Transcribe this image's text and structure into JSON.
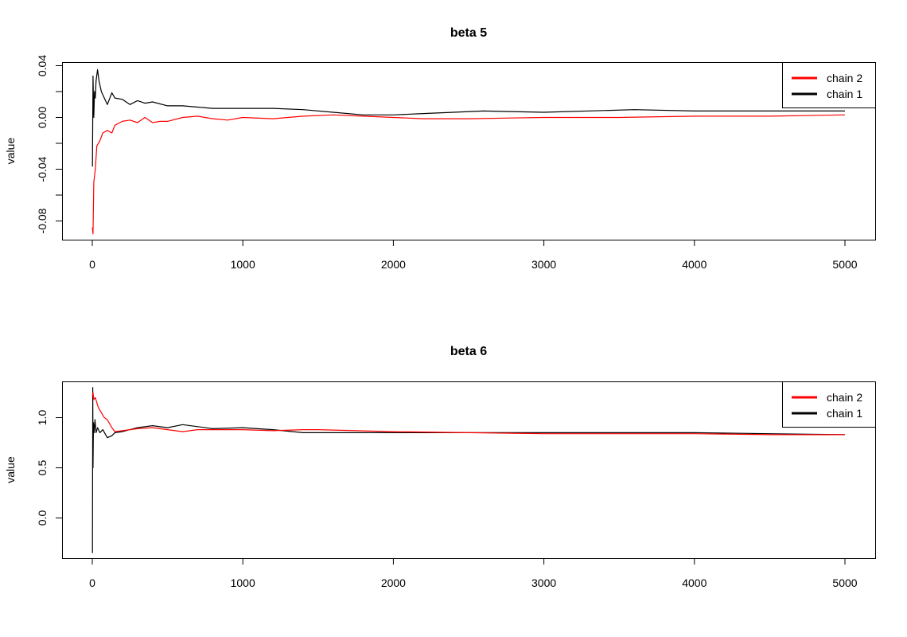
{
  "chart_data": [
    {
      "type": "line",
      "title": "beta 5",
      "xlabel": "",
      "ylabel": "value",
      "xlim": [
        0,
        5000
      ],
      "ylim": [
        -0.095,
        0.041
      ],
      "xticks": [
        0,
        1000,
        2000,
        3000,
        4000,
        5000
      ],
      "xtick_labels": [
        "0",
        "1000",
        "2000",
        "3000",
        "4000",
        "5000"
      ],
      "yticks": [
        -0.08,
        -0.06,
        -0.04,
        -0.02,
        0.0,
        0.02,
        0.04
      ],
      "ytick_labels": [
        "-0.08",
        "",
        "-0.04",
        "",
        "0.00",
        "",
        "0.04"
      ],
      "grid": false,
      "legend_position": "top-right",
      "legend": [
        {
          "label": "chain 2",
          "color": "#ff0000"
        },
        {
          "label": "chain 1",
          "color": "#000000"
        }
      ],
      "series": [
        {
          "name": "chain 2",
          "color": "#ff0000",
          "x": [
            1,
            5,
            10,
            20,
            30,
            50,
            70,
            100,
            130,
            150,
            200,
            250,
            300,
            350,
            400,
            450,
            500,
            600,
            700,
            800,
            900,
            1000,
            1200,
            1400,
            1600,
            1800,
            2000,
            2200,
            2500,
            3000,
            3500,
            4000,
            4500,
            5000
          ],
          "y": [
            -0.085,
            -0.09,
            -0.05,
            -0.04,
            -0.022,
            -0.018,
            -0.012,
            -0.01,
            -0.012,
            -0.006,
            -0.003,
            -0.002,
            -0.004,
            0.0,
            -0.004,
            -0.003,
            -0.003,
            0.0,
            0.001,
            -0.001,
            -0.002,
            0.0,
            -0.001,
            0.001,
            0.002,
            0.001,
            0.0,
            -0.001,
            -0.001,
            0.0,
            0.0,
            0.001,
            0.001,
            0.002
          ]
        },
        {
          "name": "chain 1",
          "color": "#000000",
          "x": [
            1,
            5,
            10,
            15,
            20,
            25,
            35,
            45,
            60,
            80,
            100,
            130,
            150,
            200,
            250,
            300,
            350,
            400,
            500,
            600,
            700,
            800,
            900,
            1000,
            1200,
            1400,
            1600,
            1800,
            2000,
            2200,
            2600,
            3000,
            3600,
            4000,
            4500,
            5000
          ],
          "y": [
            -0.038,
            0.032,
            0.0,
            0.02,
            0.015,
            0.028,
            0.037,
            0.028,
            0.02,
            0.015,
            0.01,
            0.019,
            0.015,
            0.014,
            0.01,
            0.013,
            0.011,
            0.012,
            0.009,
            0.009,
            0.008,
            0.007,
            0.007,
            0.007,
            0.007,
            0.006,
            0.004,
            0.002,
            0.002,
            0.003,
            0.005,
            0.004,
            0.006,
            0.005,
            0.005,
            0.005
          ]
        }
      ]
    },
    {
      "type": "line",
      "title": "beta 6",
      "xlabel": "",
      "ylabel": "value",
      "xlim": [
        0,
        5000
      ],
      "ylim": [
        -0.4,
        1.35
      ],
      "xticks": [
        0,
        1000,
        2000,
        3000,
        4000,
        5000
      ],
      "xtick_labels": [
        "0",
        "1000",
        "2000",
        "3000",
        "4000",
        "5000"
      ],
      "yticks": [
        0.0,
        0.5,
        1.0
      ],
      "ytick_labels": [
        "0.0",
        "0.5",
        "1.0"
      ],
      "grid": false,
      "legend_position": "top-right",
      "legend": [
        {
          "label": "chain 2",
          "color": "#ff0000"
        },
        {
          "label": "chain 1",
          "color": "#000000"
        }
      ],
      "series": [
        {
          "name": "chain 2",
          "color": "#ff0000",
          "x": [
            1,
            5,
            10,
            20,
            40,
            60,
            80,
            100,
            130,
            150,
            200,
            300,
            400,
            500,
            600,
            700,
            800,
            1000,
            1200,
            1400,
            1500,
            2000,
            2500,
            3000,
            3500,
            4000,
            4500,
            5000
          ],
          "y": [
            1.22,
            1.25,
            1.18,
            1.2,
            1.1,
            1.05,
            1.0,
            0.98,
            0.9,
            0.86,
            0.87,
            0.89,
            0.9,
            0.88,
            0.86,
            0.88,
            0.88,
            0.88,
            0.87,
            0.88,
            0.88,
            0.86,
            0.85,
            0.84,
            0.84,
            0.84,
            0.83,
            0.83
          ]
        },
        {
          "name": "chain 1",
          "color": "#000000",
          "x": [
            1,
            3,
            5,
            8,
            12,
            18,
            25,
            35,
            50,
            70,
            100,
            130,
            150,
            200,
            250,
            300,
            400,
            500,
            600,
            700,
            800,
            1000,
            1200,
            1400,
            1600,
            2000,
            2500,
            3000,
            3500,
            4000,
            4500,
            5000
          ],
          "y": [
            -0.35,
            1.3,
            0.5,
            0.95,
            0.85,
            0.98,
            0.85,
            0.9,
            0.85,
            0.88,
            0.8,
            0.82,
            0.85,
            0.86,
            0.88,
            0.9,
            0.92,
            0.9,
            0.93,
            0.91,
            0.89,
            0.9,
            0.88,
            0.85,
            0.85,
            0.85,
            0.85,
            0.85,
            0.85,
            0.85,
            0.84,
            0.83
          ]
        }
      ]
    }
  ]
}
